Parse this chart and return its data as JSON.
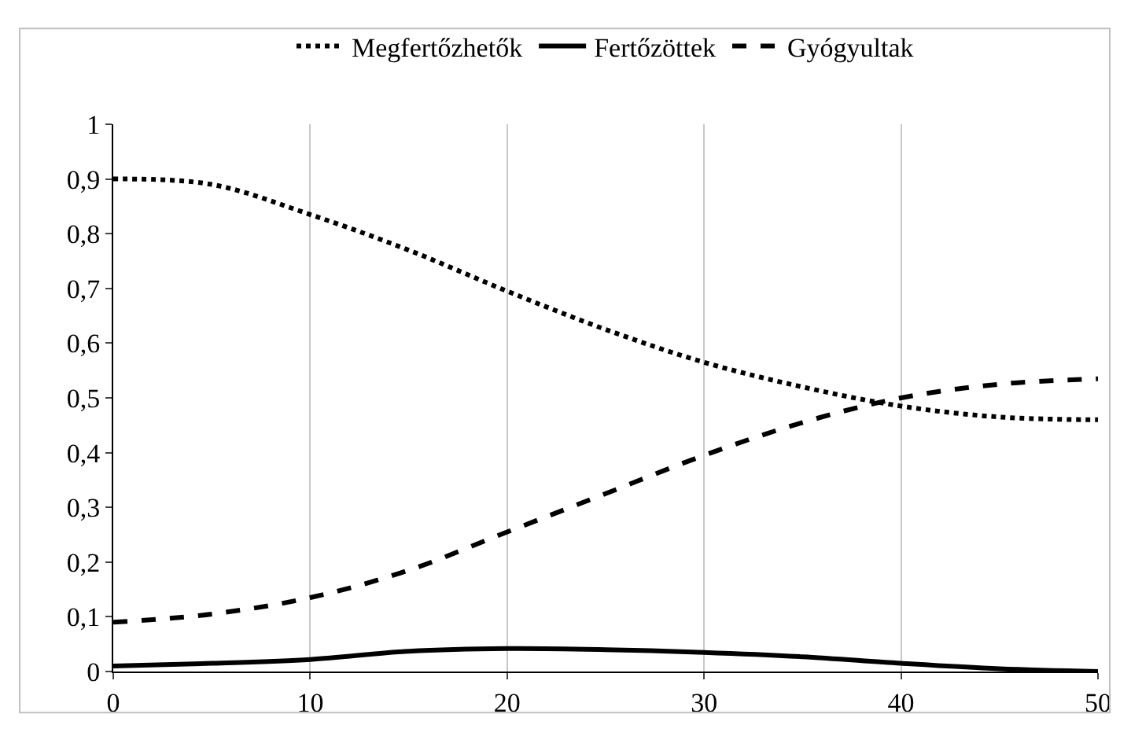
{
  "chart_data": {
    "type": "line",
    "x": [
      0,
      5,
      10,
      15,
      20,
      25,
      30,
      35,
      40,
      45,
      50
    ],
    "series": [
      {
        "name": "Megfertőzhetők",
        "color": "#000000",
        "line_style": "dotted",
        "values": [
          0.9,
          0.89,
          0.835,
          0.77,
          0.695,
          0.625,
          0.565,
          0.52,
          0.485,
          0.465,
          0.46
        ]
      },
      {
        "name": "Fertőzöttek",
        "color": "#000000",
        "line_style": "solid",
        "values": [
          0.01,
          0.015,
          0.022,
          0.037,
          0.042,
          0.04,
          0.035,
          0.027,
          0.015,
          0.005,
          0.0
        ]
      },
      {
        "name": "Gyógyultak",
        "color": "#000000",
        "line_style": "dashed",
        "values": [
          0.09,
          0.105,
          0.135,
          0.185,
          0.255,
          0.325,
          0.395,
          0.455,
          0.5,
          0.525,
          0.535
        ]
      }
    ],
    "xlim": [
      0,
      50
    ],
    "xticks": [
      0,
      10,
      20,
      30,
      40,
      50
    ],
    "ylim": [
      0,
      1
    ],
    "yticks": [
      0,
      {
        "value": 0.1,
        "label": "0,1"
      },
      {
        "value": 0.2,
        "label": "0,2"
      },
      {
        "value": 0.3,
        "label": "0,3"
      },
      {
        "value": 0.4,
        "label": "0,4"
      },
      {
        "value": 0.5,
        "label": "0,5"
      },
      {
        "value": 0.6,
        "label": "0,6"
      },
      {
        "value": 0.7,
        "label": "0,7"
      },
      {
        "value": 0.8,
        "label": "0,8"
      },
      {
        "value": 0.9,
        "label": "0,9"
      },
      1
    ],
    "grid": "x",
    "legend": "top",
    "marker": "none"
  }
}
